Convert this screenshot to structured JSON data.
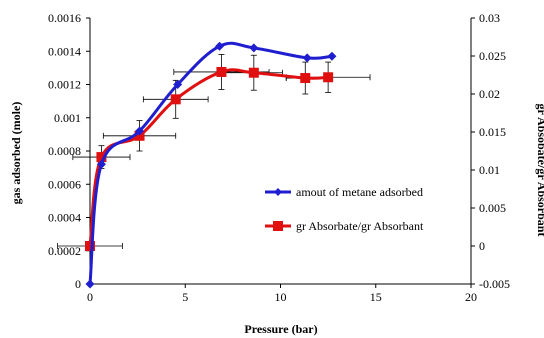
{
  "chart_data": {
    "type": "line",
    "title": "",
    "xlabel": "Pressure (bar)",
    "ylabel": "gas adsorbed (mole)",
    "y2label": "gr Absobate/gr Absorbant",
    "xlim": [
      0,
      20
    ],
    "ylim": [
      0,
      0.0016
    ],
    "y2lim": [
      -0.005,
      0.03
    ],
    "x_ticks": [
      "0",
      "5",
      "10",
      "15",
      "20"
    ],
    "y_ticks": [
      "0",
      "0.0002",
      "0.0004",
      "0.0006",
      "0.0008",
      "0.001",
      "0.0012",
      "0.0014",
      "0.0016"
    ],
    "y2_ticks": [
      "-0.005",
      "0",
      "0.005",
      "0.01",
      "0.015",
      "0.02",
      "0.025",
      "0.03"
    ],
    "grid": false,
    "legend_position": "center-right",
    "series": [
      {
        "name": "amout of metane adsorbed",
        "axis": "left",
        "color": "#1f1fd0",
        "marker": "diamond",
        "x": [
          0,
          0.6,
          2.6,
          4.6,
          6.8,
          8.6,
          11.4,
          12.7
        ],
        "y": [
          0,
          0.00072,
          0.00092,
          0.0012,
          0.00143,
          0.00142,
          0.00136,
          0.00137
        ]
      },
      {
        "name": "gr Absorbate/gr Absorbant",
        "axis": "right",
        "color": "#e01010",
        "marker": "square",
        "x": [
          0,
          0.6,
          2.6,
          4.5,
          6.9,
          8.6,
          11.3,
          12.5
        ],
        "y": [
          0.0,
          0.0117,
          0.0145,
          0.0193,
          0.0229,
          0.0228,
          0.0221,
          0.0222
        ],
        "x_err": [
          1.7,
          1.5,
          1.9,
          1.7,
          2.5,
          1.5,
          1.0,
          2.2
        ],
        "y_err": [
          0,
          0.0015,
          0.002,
          0.0025,
          0.0023,
          0.0023,
          0.0021,
          0.002
        ]
      }
    ]
  }
}
